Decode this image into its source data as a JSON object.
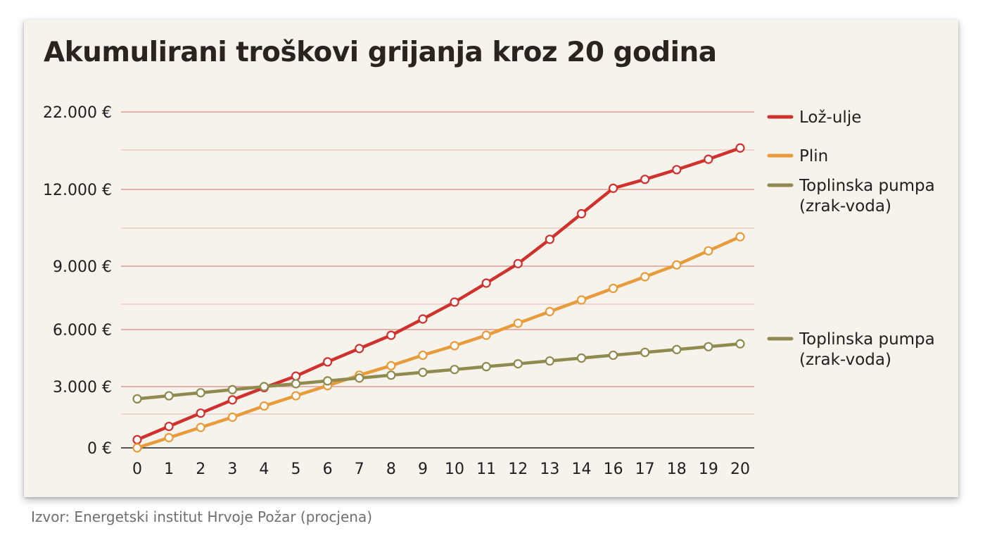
{
  "title": "Akumulirani troškovi grijanja kroz 20 godina",
  "source": "Izvor: Energetski institut Hrvoje Požar (procjena)",
  "colors": {
    "background": "#f6f2ec",
    "gridline": "#d9897f",
    "axis": "#1f1f1f",
    "loz_ulje": "#d0312d",
    "plin": "#e89b3a",
    "toplinska_pumpa": "#8f8a4e"
  },
  "chart_data": {
    "type": "line",
    "title": "Akumulirani troškovi grijanja kroz 20 godina",
    "xlabel": "",
    "ylabel": "",
    "x": [
      "0",
      "1",
      "2",
      "3",
      "4",
      "5",
      "6",
      "7",
      "8",
      "9",
      "10",
      "11",
      "12",
      "13",
      "14",
      "16",
      "17",
      "18",
      "19",
      "20"
    ],
    "y_ticks": [
      {
        "value": 0,
        "label": "0 €"
      },
      {
        "value": 3000,
        "label": "3.000 €"
      },
      {
        "value": 6000,
        "label": "6.000 €"
      },
      {
        "value": 9000,
        "label": "9.000 €"
      },
      {
        "value": 12000,
        "label": "12.000 €"
      },
      {
        "value": 22000,
        "label": "22.000 €"
      }
    ],
    "y_tick_note": "the axis labels are unevenly spaced; values below are read from the printed labels",
    "grid": true,
    "legend_position": "right",
    "series": [
      {
        "name": "Lož-ulje",
        "color": "#d0312d",
        "values": [
          400,
          1050,
          1700,
          2350,
          2950,
          3550,
          4300,
          5000,
          5700,
          6500,
          7300,
          8200,
          9100,
          10050,
          11050,
          12150,
          13300,
          14550,
          15900,
          17350
        ]
      },
      {
        "name": "Plin",
        "color": "#e89b3a",
        "values": [
          0,
          500,
          1000,
          1500,
          2050,
          2550,
          3050,
          3600,
          4100,
          4650,
          5150,
          5700,
          6300,
          6850,
          7400,
          7950,
          8500,
          9050,
          9600,
          10150
        ]
      },
      {
        "name": "Toplinska pumpa\n(zrak-voda)",
        "color": "#8f8a4e",
        "values": [
          2400,
          2550,
          2700,
          2850,
          3000,
          3150,
          3300,
          3450,
          3600,
          3750,
          3900,
          4050,
          4200,
          4350,
          4500,
          4650,
          4800,
          4950,
          5100,
          5250
        ]
      }
    ],
    "legend": [
      {
        "label_lines": [
          "Lož-ulje"
        ],
        "color": "#d0312d"
      },
      {
        "label_lines": [
          "Plin"
        ],
        "color": "#e89b3a"
      },
      {
        "label_lines": [
          "Toplinska pumpa",
          "(zrak-voda)"
        ],
        "color": "#8f8a4e"
      },
      {
        "label_lines": [
          "Toplinska pumpa",
          "(zrak-voda)"
        ],
        "color": "#8f8a4e"
      }
    ]
  }
}
